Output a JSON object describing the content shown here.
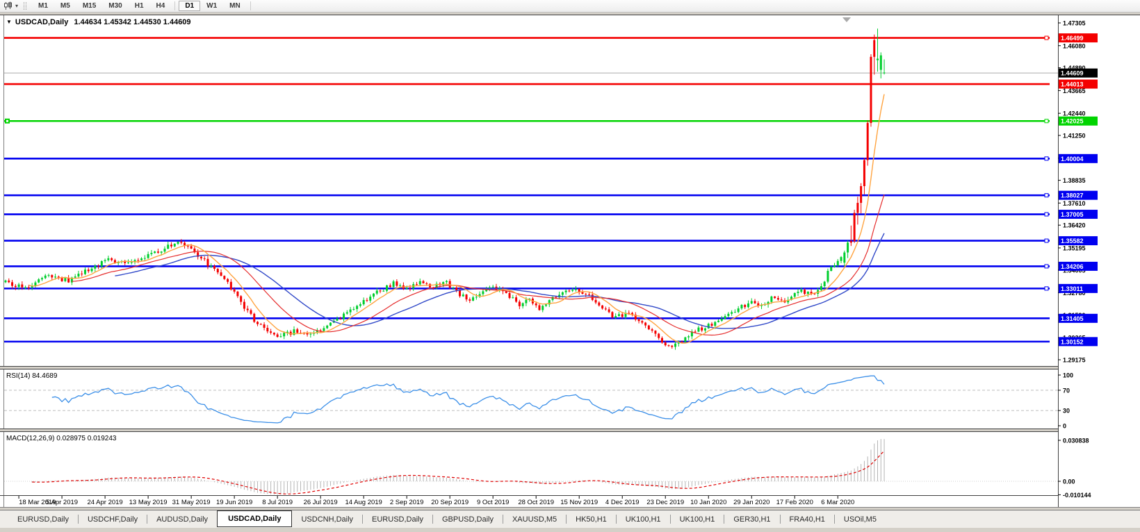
{
  "toolbar": {
    "timeframes": [
      "M1",
      "M5",
      "M15",
      "M30",
      "H1",
      "H4",
      "D1",
      "W1",
      "MN"
    ],
    "active_timeframe": "D1"
  },
  "chart_window": {
    "title_symbol": "USDCAD,Daily",
    "title_ohlc": "1.44634 1.45342 1.44530 1.44609"
  },
  "indicators": {
    "rsi_label": "RSI(14) 84.4689",
    "macd_label": "MACD(12,26,9) 0.028975 0.019243"
  },
  "chart_data": {
    "type": "candlestick",
    "symbol": "USDCAD",
    "timeframe": "Daily",
    "last_candle": {
      "open": 1.44634,
      "high": 1.45342,
      "low": 1.4453,
      "close": 1.44609
    },
    "current_price_label": "1.44609",
    "current_price": 1.44609,
    "y_axis_ticks": [
      "1.47305",
      "1.46080",
      "1.44890",
      "1.43665",
      "1.42440",
      "1.41250",
      "1.40025",
      "1.38835",
      "1.37610",
      "1.36420",
      "1.35195",
      "1.34005",
      "1.32780",
      "1.31590",
      "1.30365",
      "1.29175"
    ],
    "x_axis_labels": [
      "18 Mar 2019",
      "5 Apr 2019",
      "24 Apr 2019",
      "13 May 2019",
      "31 May 2019",
      "19 Jun 2019",
      "8 Jul 2019",
      "26 Jul 2019",
      "14 Aug 2019",
      "2 Sep 2019",
      "20 Sep 2019",
      "9 Oct 2019",
      "28 Oct 2019",
      "15 Nov 2019",
      "4 Dec 2019",
      "23 Dec 2019",
      "10 Jan 2020",
      "29 Jan 2020",
      "17 Feb 2020",
      "6 Mar 2020"
    ],
    "levels": [
      {
        "price": 1.46499,
        "label": "1.46499",
        "color": "#f40000",
        "handle": true
      },
      {
        "price": 1.44013,
        "label": "1.44013",
        "color": "#f40000",
        "handle": false
      },
      {
        "price": 1.42025,
        "label": "1.42025",
        "color": "#00d400",
        "handle": true,
        "left_handle": true
      },
      {
        "price": 1.40004,
        "label": "1.40004",
        "color": "#0000f0",
        "handle": true
      },
      {
        "price": 1.38027,
        "label": "1.38027",
        "color": "#0000f0",
        "handle": true
      },
      {
        "price": 1.37005,
        "label": "1.37005",
        "color": "#0000f0",
        "handle": true
      },
      {
        "price": 1.35582,
        "label": "1.35582",
        "color": "#0000f0",
        "handle": true
      },
      {
        "price": 1.34206,
        "label": "1.34206",
        "color": "#0000f0",
        "handle": true
      },
      {
        "price": 1.33011,
        "label": "1.33011",
        "color": "#0000f0",
        "handle": true
      },
      {
        "price": 1.31405,
        "label": "1.31405",
        "color": "#0000f0",
        "handle": false
      },
      {
        "price": 1.30152,
        "label": "1.30152",
        "color": "#0000f0",
        "handle": false
      }
    ],
    "colors": {
      "candle_up": "#00ce2d",
      "candle_down": "#f40000",
      "ma_fast": "#ffa33f",
      "ma_mid": "#e52b2b",
      "ma_slow": "#3048c8",
      "rsi_line": "#3b8fe8",
      "macd_hist": "#b4b4b4",
      "macd_signal": "#e00000",
      "current_price_line": "#ababab"
    },
    "price_anchors": [
      [
        0,
        1.3335
      ],
      [
        6,
        1.3305
      ],
      [
        12,
        1.337
      ],
      [
        19,
        1.3345
      ],
      [
        25,
        1.34
      ],
      [
        31,
        1.3455
      ],
      [
        37,
        1.344
      ],
      [
        44,
        1.348
      ],
      [
        49,
        1.3525
      ],
      [
        53,
        1.3555
      ],
      [
        57,
        1.35
      ],
      [
        62,
        1.3415
      ],
      [
        67,
        1.333
      ],
      [
        71,
        1.323
      ],
      [
        75,
        1.313
      ],
      [
        79,
        1.3065
      ],
      [
        83,
        1.3045
      ],
      [
        87,
        1.307
      ],
      [
        92,
        1.3055
      ],
      [
        96,
        1.308
      ],
      [
        100,
        1.313
      ],
      [
        104,
        1.318
      ],
      [
        108,
        1.323
      ],
      [
        112,
        1.328
      ],
      [
        117,
        1.333
      ],
      [
        121,
        1.33
      ],
      [
        125,
        1.334
      ],
      [
        129,
        1.331
      ],
      [
        133,
        1.333
      ],
      [
        136,
        1.328
      ],
      [
        140,
        1.3245
      ],
      [
        144,
        1.3285
      ],
      [
        148,
        1.3305
      ],
      [
        152,
        1.326
      ],
      [
        155,
        1.3215
      ],
      [
        158,
        1.3235
      ],
      [
        161,
        1.3195
      ],
      [
        165,
        1.3245
      ],
      [
        168,
        1.328
      ],
      [
        171,
        1.3305
      ],
      [
        175,
        1.327
      ],
      [
        178,
        1.323
      ],
      [
        181,
        1.318
      ],
      [
        184,
        1.3145
      ],
      [
        188,
        1.317
      ],
      [
        191,
        1.312
      ],
      [
        194,
        1.3075
      ],
      [
        197,
        1.3035
      ],
      [
        200,
        1.299
      ],
      [
        203,
        1.301
      ],
      [
        206,
        1.305
      ],
      [
        209,
        1.308
      ],
      [
        213,
        1.311
      ],
      [
        216,
        1.314
      ],
      [
        219,
        1.3165
      ],
      [
        222,
        1.32
      ],
      [
        225,
        1.323
      ],
      [
        228,
        1.321
      ],
      [
        231,
        1.325
      ],
      [
        234,
        1.3225
      ],
      [
        237,
        1.326
      ],
      [
        240,
        1.329
      ],
      [
        243,
        1.327
      ],
      [
        245,
        1.33
      ],
      [
        247,
        1.335
      ],
      [
        249,
        1.342
      ],
      [
        251,
        1.3445
      ],
      [
        253,
        1.349
      ],
      [
        265,
        1.4461
      ]
    ],
    "candle_overrides": {
      "253": [
        1.344,
        1.3505,
        1.342,
        1.3495,
        "g"
      ],
      "254": [
        1.3495,
        1.356,
        1.3465,
        1.3548,
        "g"
      ],
      "255": [
        1.3548,
        1.364,
        1.353,
        1.3556,
        "r"
      ],
      "256": [
        1.3556,
        1.3725,
        1.3546,
        1.3708,
        "r"
      ],
      "257": [
        1.3708,
        1.3795,
        1.3645,
        1.3762,
        "r"
      ],
      "258": [
        1.3762,
        1.3868,
        1.3705,
        1.3852,
        "r"
      ],
      "259": [
        1.3852,
        1.4005,
        1.3808,
        1.3992,
        "r"
      ],
      "260": [
        1.3992,
        1.4205,
        1.3962,
        1.4192,
        "r"
      ],
      "261": [
        1.4192,
        1.4562,
        1.4172,
        1.4548,
        "r"
      ],
      "262": [
        1.4548,
        1.4668,
        1.4452,
        1.4638,
        "r"
      ],
      "263": [
        1.453,
        1.47,
        1.4468,
        1.4538,
        "g"
      ],
      "264": [
        1.4478,
        1.4572,
        1.4432,
        1.4556,
        "g"
      ],
      "265": [
        1.44634,
        1.45342,
        1.4453,
        1.44609,
        "g"
      ]
    },
    "rsi": {
      "label": "RSI(14) 84.4689",
      "current_value": 84.4689,
      "axis_labels": [
        "100",
        "70",
        "30",
        "0"
      ],
      "axis_values": [
        100,
        70,
        30,
        0
      ],
      "dashed_levels": [
        70,
        30
      ]
    },
    "macd": {
      "label": "MACD(12,26,9) 0.028975 0.019243",
      "main_value": 0.028975,
      "signal_value": 0.019243,
      "axis_labels": [
        "0.030838",
        "0.00",
        "-0.010144"
      ],
      "axis_values": [
        0.030838,
        0,
        -0.010144
      ]
    },
    "price_axis_range": [
      1.29175,
      1.47305
    ]
  },
  "tabs": {
    "items": [
      "EURUSD,Daily",
      "USDCHF,Daily",
      "AUDUSD,Daily",
      "USDCAD,Daily",
      "USDCNH,Daily",
      "EURUSD,Daily",
      "GBPUSD,Daily",
      "XAUUSD,M5",
      "HK50,H1",
      "UK100,H1",
      "UK100,H1",
      "GER30,H1",
      "FRA40,H1",
      "USOil,M5"
    ],
    "active_index": 3
  }
}
